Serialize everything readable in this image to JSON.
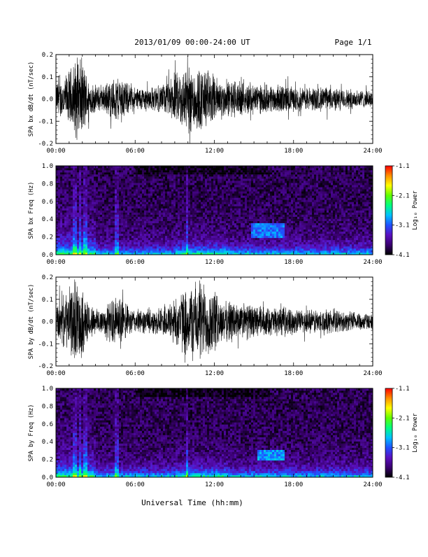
{
  "header": {
    "title": "2013/01/09  00:00-24:00 UT",
    "page_label": "Page 1/1"
  },
  "footer": {
    "xlabel": "Universal Time (hh:mm)"
  },
  "colorbar": {
    "label": "Log₁₀ Power",
    "tick_labels": [
      "-1.1",
      "-2.1",
      "-3.1",
      "-4.1"
    ],
    "range": [
      -4.1,
      -1.1
    ],
    "colormap": [
      "#000000",
      "#3a0070",
      "#5a10c0",
      "#2050ff",
      "#00c0ff",
      "#00ff80",
      "#60ff00",
      "#ffff00",
      "#ff9000",
      "#ff0000"
    ]
  },
  "chart_data": [
    {
      "type": "line",
      "ylabel": "SPA bx dB/dt (nT/sec)",
      "xlim": [
        0,
        24
      ],
      "ylim": [
        -0.2,
        0.2
      ],
      "x_tick_labels": [
        "00:00",
        "06:00",
        "12:00",
        "18:00",
        "24:00"
      ],
      "y_tick_labels": [
        "0.2",
        "0.1",
        "0.0",
        "-0.1",
        "-0.2"
      ],
      "series": [
        {
          "x": [
            0,
            0.5,
            1,
            1.5,
            2,
            2.5,
            3,
            3.5,
            4,
            4.5,
            5,
            5.5,
            6,
            6.5,
            7,
            7.5,
            8,
            8.5,
            9,
            9.5,
            10,
            10.5,
            11,
            11.5,
            12,
            12.5,
            13,
            13.5,
            14,
            14.5,
            15,
            15.5,
            16,
            16.5,
            17,
            17.5,
            18,
            18.5,
            19,
            19.5,
            20,
            20.5,
            21,
            21.5,
            22,
            22.5,
            23,
            23.5,
            24
          ],
          "amplitude": [
            0.09,
            0.1,
            0.14,
            0.2,
            0.2,
            0.09,
            0.07,
            0.06,
            0.09,
            0.11,
            0.12,
            0.07,
            0.06,
            0.06,
            0.06,
            0.06,
            0.07,
            0.09,
            0.12,
            0.15,
            0.17,
            0.17,
            0.16,
            0.15,
            0.12,
            0.09,
            0.09,
            0.1,
            0.08,
            0.08,
            0.08,
            0.07,
            0.07,
            0.07,
            0.07,
            0.07,
            0.06,
            0.06,
            0.06,
            0.06,
            0.06,
            0.06,
            0.06,
            0.05,
            0.05,
            0.05,
            0.05,
            0.04,
            0.04
          ]
        }
      ]
    },
    {
      "type": "heatmap",
      "ylabel": "SPA bx Freq (Hz)",
      "xlim": [
        0,
        24
      ],
      "ylim": [
        0.0,
        1.0
      ],
      "x_tick_labels": [
        "00:00",
        "06:00",
        "12:00",
        "18:00",
        "24:00"
      ],
      "y_tick_labels": [
        "1.0",
        "0.8",
        "0.6",
        "0.4",
        "0.2",
        "0.0"
      ],
      "zlim": [
        -4.1,
        -1.1
      ],
      "broadband_bursts_hours": [
        1.4,
        1.8,
        2.2,
        4.6,
        9.9
      ],
      "band_feature": {
        "x": [
          14.8,
          17.3
        ],
        "y": [
          0.2,
          0.35
        ],
        "log_power": -3.0
      }
    },
    {
      "type": "line",
      "ylabel": "SPA by dB/dt (nT/sec)",
      "xlim": [
        0,
        24
      ],
      "ylim": [
        -0.2,
        0.2
      ],
      "x_tick_labels": [
        "00:00",
        "06:00",
        "12:00",
        "18:00",
        "24:00"
      ],
      "y_tick_labels": [
        "0.2",
        "0.1",
        "0.0",
        "-0.1",
        "-0.2"
      ],
      "series": [
        {
          "x": [
            0,
            0.5,
            1,
            1.5,
            2,
            2.5,
            3,
            3.5,
            4,
            4.5,
            5,
            5.5,
            6,
            6.5,
            7,
            7.5,
            8,
            8.5,
            9,
            9.5,
            10,
            10.5,
            11,
            11.5,
            12,
            12.5,
            13,
            13.5,
            14,
            14.5,
            15,
            15.5,
            16,
            16.5,
            17,
            17.5,
            18,
            18.5,
            19,
            19.5,
            20,
            20.5,
            21,
            21.5,
            22,
            22.5,
            23,
            23.5,
            24
          ],
          "amplitude": [
            0.09,
            0.12,
            0.16,
            0.2,
            0.18,
            0.09,
            0.07,
            0.07,
            0.1,
            0.12,
            0.12,
            0.07,
            0.06,
            0.06,
            0.06,
            0.06,
            0.07,
            0.09,
            0.12,
            0.15,
            0.17,
            0.2,
            0.2,
            0.18,
            0.16,
            0.1,
            0.1,
            0.11,
            0.08,
            0.09,
            0.08,
            0.08,
            0.07,
            0.07,
            0.07,
            0.07,
            0.06,
            0.06,
            0.06,
            0.06,
            0.06,
            0.06,
            0.06,
            0.05,
            0.05,
            0.05,
            0.05,
            0.04,
            0.04
          ]
        }
      ]
    },
    {
      "type": "heatmap",
      "ylabel": "SPA by Freq (Hz)",
      "xlim": [
        0,
        24
      ],
      "ylim": [
        0.0,
        1.0
      ],
      "x_tick_labels": [
        "00:00",
        "06:00",
        "12:00",
        "18:00",
        "24:00"
      ],
      "y_tick_labels": [
        "1.0",
        "0.8",
        "0.6",
        "0.4",
        "0.2",
        "0.0"
      ],
      "zlim": [
        -4.1,
        -1.1
      ],
      "broadband_bursts_hours": [
        1.4,
        1.8,
        2.2,
        4.6,
        9.9
      ],
      "band_feature": {
        "x": [
          15.2,
          17.3
        ],
        "y": [
          0.18,
          0.3
        ],
        "log_power": -2.9
      }
    }
  ]
}
